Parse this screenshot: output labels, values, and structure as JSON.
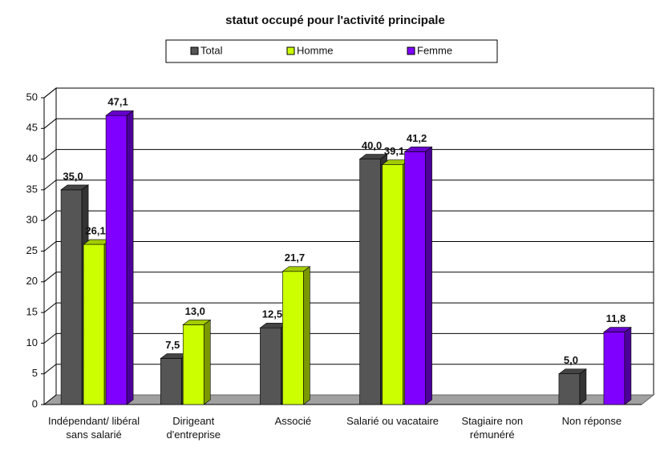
{
  "chart_data": {
    "type": "bar3d",
    "title": "statut occupé pour l'activité principale",
    "categories": [
      "Indépendant/ libéral sans salarié",
      "Dirigeant d'entreprise",
      "Associé",
      "Salarié ou vacataire",
      "Stagiaire non rémunéré",
      "Non réponse"
    ],
    "series": [
      {
        "name": "Total",
        "color": "#555555",
        "values": [
          35.0,
          7.5,
          12.5,
          40.0,
          null,
          5.0
        ],
        "value_labels": [
          "35,0",
          "7,5",
          "12,5",
          "40,0",
          null,
          "5,0"
        ]
      },
      {
        "name": "Homme",
        "color": "#ccff00",
        "values": [
          26.1,
          13.0,
          21.7,
          39.1,
          null,
          null
        ],
        "value_labels": [
          "26,1",
          "13,0",
          "21,7",
          "39,1",
          null,
          null
        ]
      },
      {
        "name": "Femme",
        "color": "#7f00ff",
        "values": [
          47.1,
          null,
          null,
          41.2,
          null,
          11.8
        ],
        "value_labels": [
          "47,1",
          null,
          null,
          "41,2",
          null,
          "11,8"
        ]
      }
    ],
    "ylim": [
      0,
      50
    ],
    "yticks": [
      0,
      5,
      10,
      15,
      20,
      25,
      30,
      35,
      40,
      45,
      50
    ],
    "grid": true,
    "legend": "top"
  }
}
